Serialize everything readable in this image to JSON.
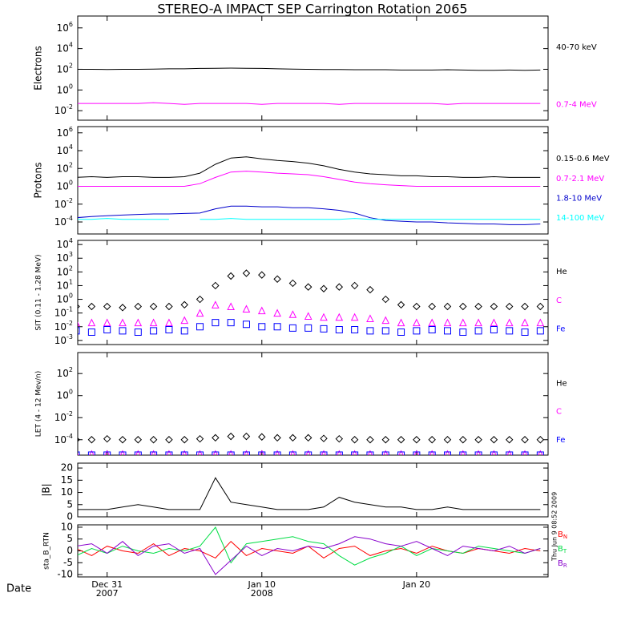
{
  "title": "STEREO-A IMPACT SEP Carrington Rotation 2065",
  "timestamp": "Thu Jun 9 08:52 2009",
  "time": {
    "label": "Date",
    "xlim": [
      363.1,
      393.5
    ],
    "xticks": [
      {
        "value": 365,
        "label": "Dec 31",
        "sublabel": "2007"
      },
      {
        "value": 375,
        "label": "Jan 10",
        "sublabel": "2008"
      },
      {
        "value": 385,
        "label": "Jan 20"
      }
    ],
    "x": [
      363,
      364,
      365,
      366,
      367,
      368,
      369,
      370,
      371,
      372,
      373,
      374,
      375,
      376,
      377,
      378,
      379,
      380,
      381,
      382,
      383,
      384,
      385,
      386,
      387,
      388,
      389,
      390,
      391,
      392,
      393
    ]
  },
  "chart_data": [
    {
      "type": "line",
      "ylabel": "Electrons",
      "log": true,
      "ylim": [
        0.0012,
        14000000
      ],
      "yticks": [
        {
          "value": 0.01,
          "label": "10",
          "exp": "-2"
        },
        {
          "value": 1,
          "label": "10",
          "exp": "0"
        },
        {
          "value": 100,
          "label": "10",
          "exp": "2"
        },
        {
          "value": 10000,
          "label": "10",
          "exp": "4"
        },
        {
          "value": 1000000,
          "label": "10",
          "exp": "6"
        }
      ],
      "series": [
        {
          "name": "40-70 keV",
          "color": "#000000",
          "values": [
            100,
            100,
            95,
            100,
            100,
            105,
            110,
            110,
            120,
            125,
            130,
            125,
            120,
            110,
            105,
            100,
            95,
            95,
            90,
            90,
            90,
            85,
            85,
            85,
            90,
            85,
            80,
            80,
            85,
            80,
            85
          ]
        },
        {
          "name": "0.7-4 MeV",
          "color": "#ff00ff",
          "values": [
            0.05,
            0.05,
            0.05,
            0.05,
            0.05,
            0.06,
            0.05,
            0.04,
            0.05,
            0.05,
            0.05,
            0.05,
            0.04,
            0.05,
            0.05,
            0.05,
            0.05,
            0.04,
            0.05,
            0.05,
            0.05,
            0.05,
            0.05,
            0.05,
            0.04,
            0.05,
            0.05,
            0.05,
            0.05,
            0.05,
            0.05
          ]
        }
      ]
    },
    {
      "type": "line",
      "ylabel": "Protons",
      "log": true,
      "ylim": [
        4.5e-06,
        5000000
      ],
      "yticks": [
        {
          "value": 0.0001,
          "label": "10",
          "exp": "-4"
        },
        {
          "value": 0.01,
          "label": "10",
          "exp": "-2"
        },
        {
          "value": 1,
          "label": "10",
          "exp": "0"
        },
        {
          "value": 100,
          "label": "10",
          "exp": "2"
        },
        {
          "value": 10000,
          "label": "10",
          "exp": "4"
        },
        {
          "value": 1000000,
          "label": "10",
          "exp": "6"
        }
      ],
      "series": [
        {
          "name": "0.15-0.6 MeV",
          "color": "#000000",
          "values": [
            10,
            12,
            10,
            12,
            12,
            10,
            10,
            12,
            30,
            300,
            1500,
            2000,
            1200,
            800,
            600,
            400,
            200,
            80,
            40,
            25,
            20,
            15,
            15,
            12,
            12,
            10,
            10,
            12,
            10,
            10,
            10
          ]
        },
        {
          "name": "0.7-2.1 MeV",
          "color": "#ff00ff",
          "values": [
            1,
            1,
            1,
            1,
            1,
            1,
            1,
            1,
            2,
            10,
            40,
            50,
            40,
            30,
            25,
            20,
            12,
            6,
            3,
            2,
            1.5,
            1.2,
            1,
            1,
            1,
            1,
            1,
            1,
            1,
            1,
            1
          ]
        },
        {
          "name": "1.8-10 MeV",
          "color": "#0000cc",
          "values": [
            0.0003,
            0.0004,
            0.0005,
            0.0006,
            0.0007,
            0.0008,
            0.0008,
            0.0009,
            0.001,
            0.003,
            0.006,
            0.006,
            0.005,
            0.005,
            0.004,
            0.004,
            0.003,
            0.002,
            0.001,
            0.0003,
            0.00015,
            0.00012,
            0.0001,
            0.0001,
            8e-05,
            7e-05,
            6e-05,
            6e-05,
            5e-05,
            5e-05,
            6e-05
          ]
        },
        {
          "name": "14-100 MeV",
          "color": "#00ffff",
          "values": [
            0.0002,
            0.0002,
            0.00025,
            0.0002,
            0.0002,
            0.0002,
            0.0002,
            null,
            0.0002,
            0.0002,
            0.00025,
            0.0002,
            0.0002,
            0.0002,
            0.0002,
            0.0002,
            0.0002,
            0.0002,
            0.00025,
            0.0002,
            0.0002,
            0.0002,
            0.0002,
            0.0002,
            0.0002,
            0.0002,
            0.0002,
            0.0002,
            0.0002,
            0.0002,
            0.0002
          ]
        }
      ]
    },
    {
      "type": "scatter",
      "ylabel": "SIT (0.11 - 1.28 MeV)",
      "log": true,
      "ylim": [
        0.0005,
        20000
      ],
      "yticks": [
        {
          "value": 0.001,
          "label": "10",
          "exp": "-3"
        },
        {
          "value": 0.01,
          "label": "10",
          "exp": "-2"
        },
        {
          "value": 0.1,
          "label": "10",
          "exp": "-1"
        },
        {
          "value": 1,
          "label": "10",
          "exp": "0"
        },
        {
          "value": 10,
          "label": "10",
          "exp": "1"
        },
        {
          "value": 100,
          "label": "10",
          "exp": "2"
        },
        {
          "value": 1000,
          "label": "10",
          "exp": "3"
        },
        {
          "value": 10000,
          "label": "10",
          "exp": "4"
        }
      ],
      "series": [
        {
          "name": "He",
          "color": "#000000",
          "marker": "diamond",
          "values": [
            0.3,
            0.3,
            0.3,
            0.25,
            0.3,
            0.3,
            0.3,
            0.4,
            1,
            10,
            50,
            80,
            60,
            30,
            15,
            8,
            6,
            8,
            10,
            5,
            1,
            0.4,
            0.3,
            0.3,
            0.3,
            0.3,
            0.3,
            0.3,
            0.3,
            0.3,
            0.3
          ]
        },
        {
          "name": "C",
          "color": "#ff00ff",
          "marker": "triangle",
          "values": [
            0.02,
            0.02,
            0.02,
            0.02,
            0.02,
            0.02,
            0.02,
            0.03,
            0.1,
            0.4,
            0.3,
            0.2,
            0.15,
            0.1,
            0.08,
            0.06,
            0.05,
            0.05,
            0.05,
            0.04,
            0.03,
            0.02,
            0.02,
            0.02,
            0.02,
            0.02,
            0.02,
            0.02,
            0.02,
            0.02,
            0.02
          ]
        },
        {
          "name": "Fe",
          "color": "#0000ff",
          "marker": "square",
          "values": [
            0.005,
            0.004,
            0.006,
            0.005,
            0.004,
            0.005,
            0.006,
            0.005,
            0.01,
            0.02,
            0.02,
            0.015,
            0.01,
            0.01,
            0.008,
            0.008,
            0.007,
            0.006,
            0.006,
            0.005,
            0.005,
            0.004,
            0.005,
            0.006,
            0.005,
            0.004,
            0.005,
            0.006,
            0.005,
            0.004,
            0.005
          ]
        }
      ]
    },
    {
      "type": "scatter",
      "ylabel": "LET (4 - 12 Mev/n)",
      "log": true,
      "ylim": [
        4e-06,
        8000
      ],
      "yticks": [
        {
          "value": 0.0001,
          "label": "10",
          "exp": "-4"
        },
        {
          "value": 0.01,
          "label": "10",
          "exp": "-2"
        },
        {
          "value": 1,
          "label": "10",
          "exp": "0"
        },
        {
          "value": 100,
          "label": "10",
          "exp": "2"
        }
      ],
      "series": [
        {
          "name": "He",
          "color": "#000000",
          "marker": "diamond",
          "values": [
            0.0001,
            0.0001,
            0.00012,
            0.0001,
            0.0001,
            0.0001,
            0.0001,
            0.0001,
            0.00012,
            0.00015,
            0.0002,
            0.0002,
            0.00018,
            0.00015,
            0.00015,
            0.00015,
            0.00013,
            0.00012,
            0.0001,
            0.0001,
            0.0001,
            0.0001,
            0.0001,
            0.0001,
            0.0001,
            0.0001,
            0.0001,
            0.0001,
            0.0001,
            0.0001,
            0.0001
          ]
        },
        {
          "name": "C",
          "color": "#ff00ff",
          "marker": "triangle",
          "values": [
            5e-06,
            5e-06,
            5e-06,
            5e-06,
            5e-06,
            5e-06,
            5e-06,
            5e-06,
            5e-06,
            5e-06,
            5e-06,
            5e-06,
            5e-06,
            5e-06,
            5e-06,
            5e-06,
            5e-06,
            5e-06,
            5e-06,
            5e-06,
            5e-06,
            5e-06,
            5e-06,
            5e-06,
            5e-06,
            5e-06,
            5e-06,
            5e-06,
            5e-06,
            5e-06,
            5e-06
          ]
        },
        {
          "name": "Fe",
          "color": "#0000ff",
          "marker": "square",
          "values": [
            4e-06,
            4e-06,
            4e-06,
            4e-06,
            4e-06,
            4e-06,
            4e-06,
            4e-06,
            4e-06,
            4e-06,
            4e-06,
            4e-06,
            4e-06,
            4e-06,
            4e-06,
            4e-06,
            4e-06,
            4e-06,
            4e-06,
            4e-06,
            4e-06,
            4e-06,
            4e-06,
            4e-06,
            4e-06,
            4e-06,
            4e-06,
            4e-06,
            4e-06,
            4e-06,
            4e-06
          ]
        }
      ]
    },
    {
      "type": "line",
      "ylabel": "|B|",
      "log": false,
      "ylim": [
        0,
        22
      ],
      "yticks": [
        0,
        5,
        10,
        15,
        20
      ],
      "series": [
        {
          "color": "#000000",
          "values": [
            3,
            3,
            3,
            4,
            5,
            4,
            3,
            3,
            3,
            16,
            6,
            5,
            4,
            3,
            3,
            3,
            4,
            8,
            6,
            5,
            4,
            4,
            3,
            3,
            4,
            3,
            3,
            3,
            3,
            3,
            3
          ]
        }
      ]
    },
    {
      "type": "line",
      "ylabel": "sta_B_RTN",
      "log": false,
      "ylim": [
        -11,
        11
      ],
      "yticks": [
        -10,
        -5,
        0,
        5,
        10
      ],
      "series": [
        {
          "name": "B",
          "subscript": "N",
          "color": "#ff0000",
          "values": [
            1,
            -2,
            2,
            0,
            -1,
            3,
            -2,
            1,
            0,
            -3,
            4,
            -2,
            1,
            0,
            -1,
            2,
            -3,
            1,
            2,
            -2,
            0,
            1,
            -1,
            2,
            0,
            -1,
            1,
            0,
            -1,
            1,
            0
          ]
        },
        {
          "name": "B",
          "subscript": "T",
          "color": "#00dd44",
          "values": [
            -2,
            1,
            -1,
            2,
            0,
            -1,
            1,
            0,
            2,
            10,
            -5,
            3,
            4,
            5,
            6,
            4,
            3,
            -2,
            -6,
            -3,
            -1,
            2,
            -2,
            1,
            0,
            -1,
            2,
            1,
            0,
            -1,
            1
          ]
        },
        {
          "name": "B",
          "subscript": "R",
          "color": "#8800cc",
          "values": [
            2,
            3,
            -1,
            4,
            -2,
            2,
            3,
            -1,
            1,
            -10,
            -4,
            2,
            -2,
            1,
            0,
            2,
            1,
            3,
            6,
            5,
            3,
            2,
            4,
            1,
            -2,
            2,
            1,
            0,
            2,
            -1,
            1
          ]
        }
      ]
    }
  ]
}
